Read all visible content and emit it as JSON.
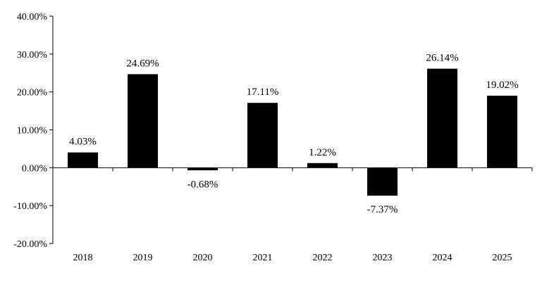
{
  "chart_data": {
    "type": "bar",
    "categories": [
      "2018",
      "2019",
      "2020",
      "2021",
      "2022",
      "2023",
      "2024",
      "2025"
    ],
    "values": [
      4.03,
      24.69,
      -0.68,
      17.11,
      1.22,
      -7.37,
      26.14,
      19.02
    ],
    "data_labels": [
      "4.03%",
      "24.69%",
      "-0.68%",
      "17.11%",
      "1.22%",
      "-7.37%",
      "26.14%",
      "19.02%"
    ],
    "yticks": [
      40,
      30,
      20,
      10,
      0,
      -10,
      -20
    ],
    "ytick_labels": [
      "40.00%",
      "30.00%",
      "20.00%",
      "10.00%",
      "0.00%",
      "-10.00%",
      "-20.00%"
    ],
    "ylim": [
      -20,
      40
    ],
    "title": "",
    "xlabel": "",
    "ylabel": "",
    "grid": false,
    "legend": "none",
    "bar_color": "#000000",
    "axis_color": "#000000"
  }
}
